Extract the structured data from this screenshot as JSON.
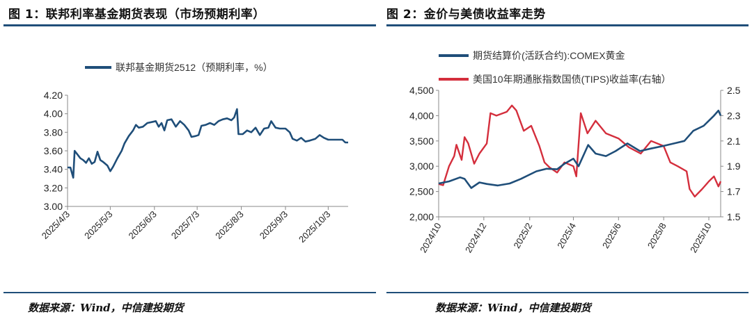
{
  "figures": {
    "left_title": "图 1：联邦利率基金期货表现（市场预期利率）",
    "right_title": "图 2：金价与美债收益率走势",
    "left_source": "数据来源：Wind，中信建投期货",
    "right_source": "数据来源：Wind，中信建投期货"
  },
  "colors": {
    "navy": "#1f4e79",
    "red": "#d42e3c",
    "axis": "#888888"
  },
  "chart_data": [
    {
      "type": "line",
      "title": "",
      "legend_position": "top-center",
      "grid": false,
      "x_ticks": [
        "2025/4/3",
        "2025/5/3",
        "2025/6/3",
        "2025/7/3",
        "2025/8/3",
        "2025/9/3",
        "2025/10/3"
      ],
      "y_ticks": [
        "3.00",
        "3.20",
        "3.40",
        "3.60",
        "3.80",
        "4.00",
        "4.20"
      ],
      "ylim": [
        3.0,
        4.2
      ],
      "x_range": [
        "2025/4/3",
        "2025/10/17"
      ],
      "series": [
        {
          "name": "联邦基金期货2512（预期利率，%）",
          "color": "#1f4e79",
          "points": [
            [
              "2025/4/3",
              3.42
            ],
            [
              "2025/4/5",
              3.42
            ],
            [
              "2025/4/7",
              3.31
            ],
            [
              "2025/4/8",
              3.6
            ],
            [
              "2025/4/10",
              3.56
            ],
            [
              "2025/4/12",
              3.52
            ],
            [
              "2025/4/14",
              3.5
            ],
            [
              "2025/4/16",
              3.47
            ],
            [
              "2025/4/18",
              3.52
            ],
            [
              "2025/4/20",
              3.46
            ],
            [
              "2025/4/22",
              3.48
            ],
            [
              "2025/4/24",
              3.59
            ],
            [
              "2025/4/26",
              3.5
            ],
            [
              "2025/4/28",
              3.48
            ],
            [
              "2025/5/1",
              3.44
            ],
            [
              "2025/5/3",
              3.38
            ],
            [
              "2025/5/5",
              3.43
            ],
            [
              "2025/5/8",
              3.52
            ],
            [
              "2025/5/11",
              3.6
            ],
            [
              "2025/5/13",
              3.68
            ],
            [
              "2025/5/16",
              3.76
            ],
            [
              "2025/5/19",
              3.82
            ],
            [
              "2025/5/21",
              3.88
            ],
            [
              "2025/5/23",
              3.85
            ],
            [
              "2025/5/26",
              3.86
            ],
            [
              "2025/5/29",
              3.9
            ],
            [
              "2025/6/1",
              3.91
            ],
            [
              "2025/6/4",
              3.92
            ],
            [
              "2025/6/6",
              3.86
            ],
            [
              "2025/6/8",
              3.9
            ],
            [
              "2025/6/10",
              3.82
            ],
            [
              "2025/6/12",
              3.93
            ],
            [
              "2025/6/15",
              3.94
            ],
            [
              "2025/6/18",
              3.86
            ],
            [
              "2025/6/21",
              3.92
            ],
            [
              "2025/6/24",
              3.88
            ],
            [
              "2025/6/27",
              3.82
            ],
            [
              "2025/6/29",
              3.75
            ],
            [
              "2025/7/2",
              3.76
            ],
            [
              "2025/7/4",
              3.77
            ],
            [
              "2025/7/6",
              3.87
            ],
            [
              "2025/7/9",
              3.88
            ],
            [
              "2025/7/12",
              3.9
            ],
            [
              "2025/7/15",
              3.88
            ],
            [
              "2025/7/18",
              3.92
            ],
            [
              "2025/7/21",
              3.94
            ],
            [
              "2025/7/24",
              3.95
            ],
            [
              "2025/7/27",
              3.93
            ],
            [
              "2025/7/29",
              3.96
            ],
            [
              "2025/7/31",
              4.05
            ],
            [
              "2025/8/1",
              3.78
            ],
            [
              "2025/8/4",
              3.78
            ],
            [
              "2025/8/7",
              3.82
            ],
            [
              "2025/8/10",
              3.8
            ],
            [
              "2025/8/13",
              3.85
            ],
            [
              "2025/8/16",
              3.77
            ],
            [
              "2025/8/19",
              3.84
            ],
            [
              "2025/8/22",
              3.85
            ],
            [
              "2025/8/24",
              3.92
            ],
            [
              "2025/8/27",
              3.85
            ],
            [
              "2025/8/30",
              3.84
            ],
            [
              "2025/9/3",
              3.84
            ],
            [
              "2025/9/6",
              3.8
            ],
            [
              "2025/9/8",
              3.73
            ],
            [
              "2025/9/11",
              3.71
            ],
            [
              "2025/9/14",
              3.74
            ],
            [
              "2025/9/17",
              3.7
            ],
            [
              "2025/9/20",
              3.71
            ],
            [
              "2025/9/24",
              3.73
            ],
            [
              "2025/9/27",
              3.77
            ],
            [
              "2025/9/30",
              3.74
            ],
            [
              "2025/10/3",
              3.72
            ],
            [
              "2025/10/8",
              3.72
            ],
            [
              "2025/10/13",
              3.72
            ],
            [
              "2025/10/15",
              3.69
            ],
            [
              "2025/10/17",
              3.69
            ]
          ]
        }
      ]
    },
    {
      "type": "line",
      "title": "",
      "legend_position": "top-left",
      "grid": false,
      "x_ticks": [
        "2024/10",
        "2024/12",
        "2025/2",
        "2025/4",
        "2025/6",
        "2025/8",
        "2025/10"
      ],
      "y_ticks_left": [
        "2,000",
        "2,500",
        "3,000",
        "3,500",
        "4,000",
        "4,500"
      ],
      "y_ticks_right": [
        "1.5",
        "1.7",
        "1.9",
        "2.1",
        "2.3",
        "2.5"
      ],
      "ylim_left": [
        2000,
        4500
      ],
      "ylim_right": [
        1.5,
        2.5
      ],
      "x_range": [
        "2024/10/1",
        "2025/10/17"
      ],
      "series": [
        {
          "name": "期货结算价(活跃合约):COMEX黄金",
          "axis": "left",
          "color": "#1f4e79",
          "points": [
            [
              "2024/10/1",
              2660
            ],
            [
              "2024/10/15",
              2700
            ],
            [
              "2024/10/30",
              2780
            ],
            [
              "2024/11/5",
              2750
            ],
            [
              "2024/11/14",
              2570
            ],
            [
              "2024/11/25",
              2680
            ],
            [
              "2024/12/5",
              2650
            ],
            [
              "2024/12/20",
              2620
            ],
            [
              "2025/1/5",
              2660
            ],
            [
              "2025/1/20",
              2750
            ],
            [
              "2025/2/10",
              2900
            ],
            [
              "2025/2/24",
              2950
            ],
            [
              "2025/3/10",
              2940
            ],
            [
              "2025/3/20",
              3050
            ],
            [
              "2025/4/1",
              3150
            ],
            [
              "2025/4/8",
              3000
            ],
            [
              "2025/4/21",
              3420
            ],
            [
              "2025/5/1",
              3250
            ],
            [
              "2025/5/15",
              3200
            ],
            [
              "2025/5/28",
              3300
            ],
            [
              "2025/6/13",
              3450
            ],
            [
              "2025/6/30",
              3300
            ],
            [
              "2025/7/15",
              3350
            ],
            [
              "2025/7/31",
              3400
            ],
            [
              "2025/8/15",
              3450
            ],
            [
              "2025/8/29",
              3500
            ],
            [
              "2025/9/10",
              3700
            ],
            [
              "2025/9/24",
              3800
            ],
            [
              "2025/10/8",
              4000
            ],
            [
              "2025/10/14",
              4100
            ],
            [
              "2025/10/17",
              4000
            ]
          ]
        },
        {
          "name": "美国10年期通胀指数国债(TIPS)收益率(右轴）",
          "axis": "right",
          "color": "#d42e3c",
          "points": [
            [
              "2024/10/1",
              1.76
            ],
            [
              "2024/10/7",
              1.75
            ],
            [
              "2024/10/15",
              1.9
            ],
            [
              "2024/10/22",
              1.98
            ],
            [
              "2024/10/25",
              2.07
            ],
            [
              "2024/11/1",
              1.95
            ],
            [
              "2024/11/5",
              2.13
            ],
            [
              "2024/11/10",
              2.08
            ],
            [
              "2024/11/18",
              1.92
            ],
            [
              "2024/11/25",
              2.0
            ],
            [
              "2024/12/5",
              2.08
            ],
            [
              "2024/12/10",
              2.32
            ],
            [
              "2024/12/18",
              2.3
            ],
            [
              "2025/1/1",
              2.33
            ],
            [
              "2025/1/8",
              2.38
            ],
            [
              "2025/1/14",
              2.34
            ],
            [
              "2025/1/24",
              2.18
            ],
            [
              "2025/2/3",
              2.22
            ],
            [
              "2025/2/14",
              2.06
            ],
            [
              "2025/2/21",
              1.93
            ],
            [
              "2025/2/28",
              1.89
            ],
            [
              "2025/3/10",
              1.85
            ],
            [
              "2025/3/20",
              1.93
            ],
            [
              "2025/4/1",
              1.9
            ],
            [
              "2025/4/5",
              1.82
            ],
            [
              "2025/4/11",
              2.32
            ],
            [
              "2025/4/20",
              2.16
            ],
            [
              "2025/5/1",
              2.26
            ],
            [
              "2025/5/15",
              2.16
            ],
            [
              "2025/6/1",
              2.12
            ],
            [
              "2025/6/15",
              2.05
            ],
            [
              "2025/7/1",
              2.0
            ],
            [
              "2025/7/15",
              2.1
            ],
            [
              "2025/8/1",
              2.06
            ],
            [
              "2025/8/10",
              1.93
            ],
            [
              "2025/8/20",
              1.9
            ],
            [
              "2025/9/1",
              1.86
            ],
            [
              "2025/9/5",
              1.72
            ],
            [
              "2025/9/12",
              1.66
            ],
            [
              "2025/9/22",
              1.72
            ],
            [
              "2025/10/1",
              1.78
            ],
            [
              "2025/10/8",
              1.82
            ],
            [
              "2025/10/14",
              1.74
            ],
            [
              "2025/10/17",
              1.78
            ]
          ]
        }
      ]
    }
  ]
}
